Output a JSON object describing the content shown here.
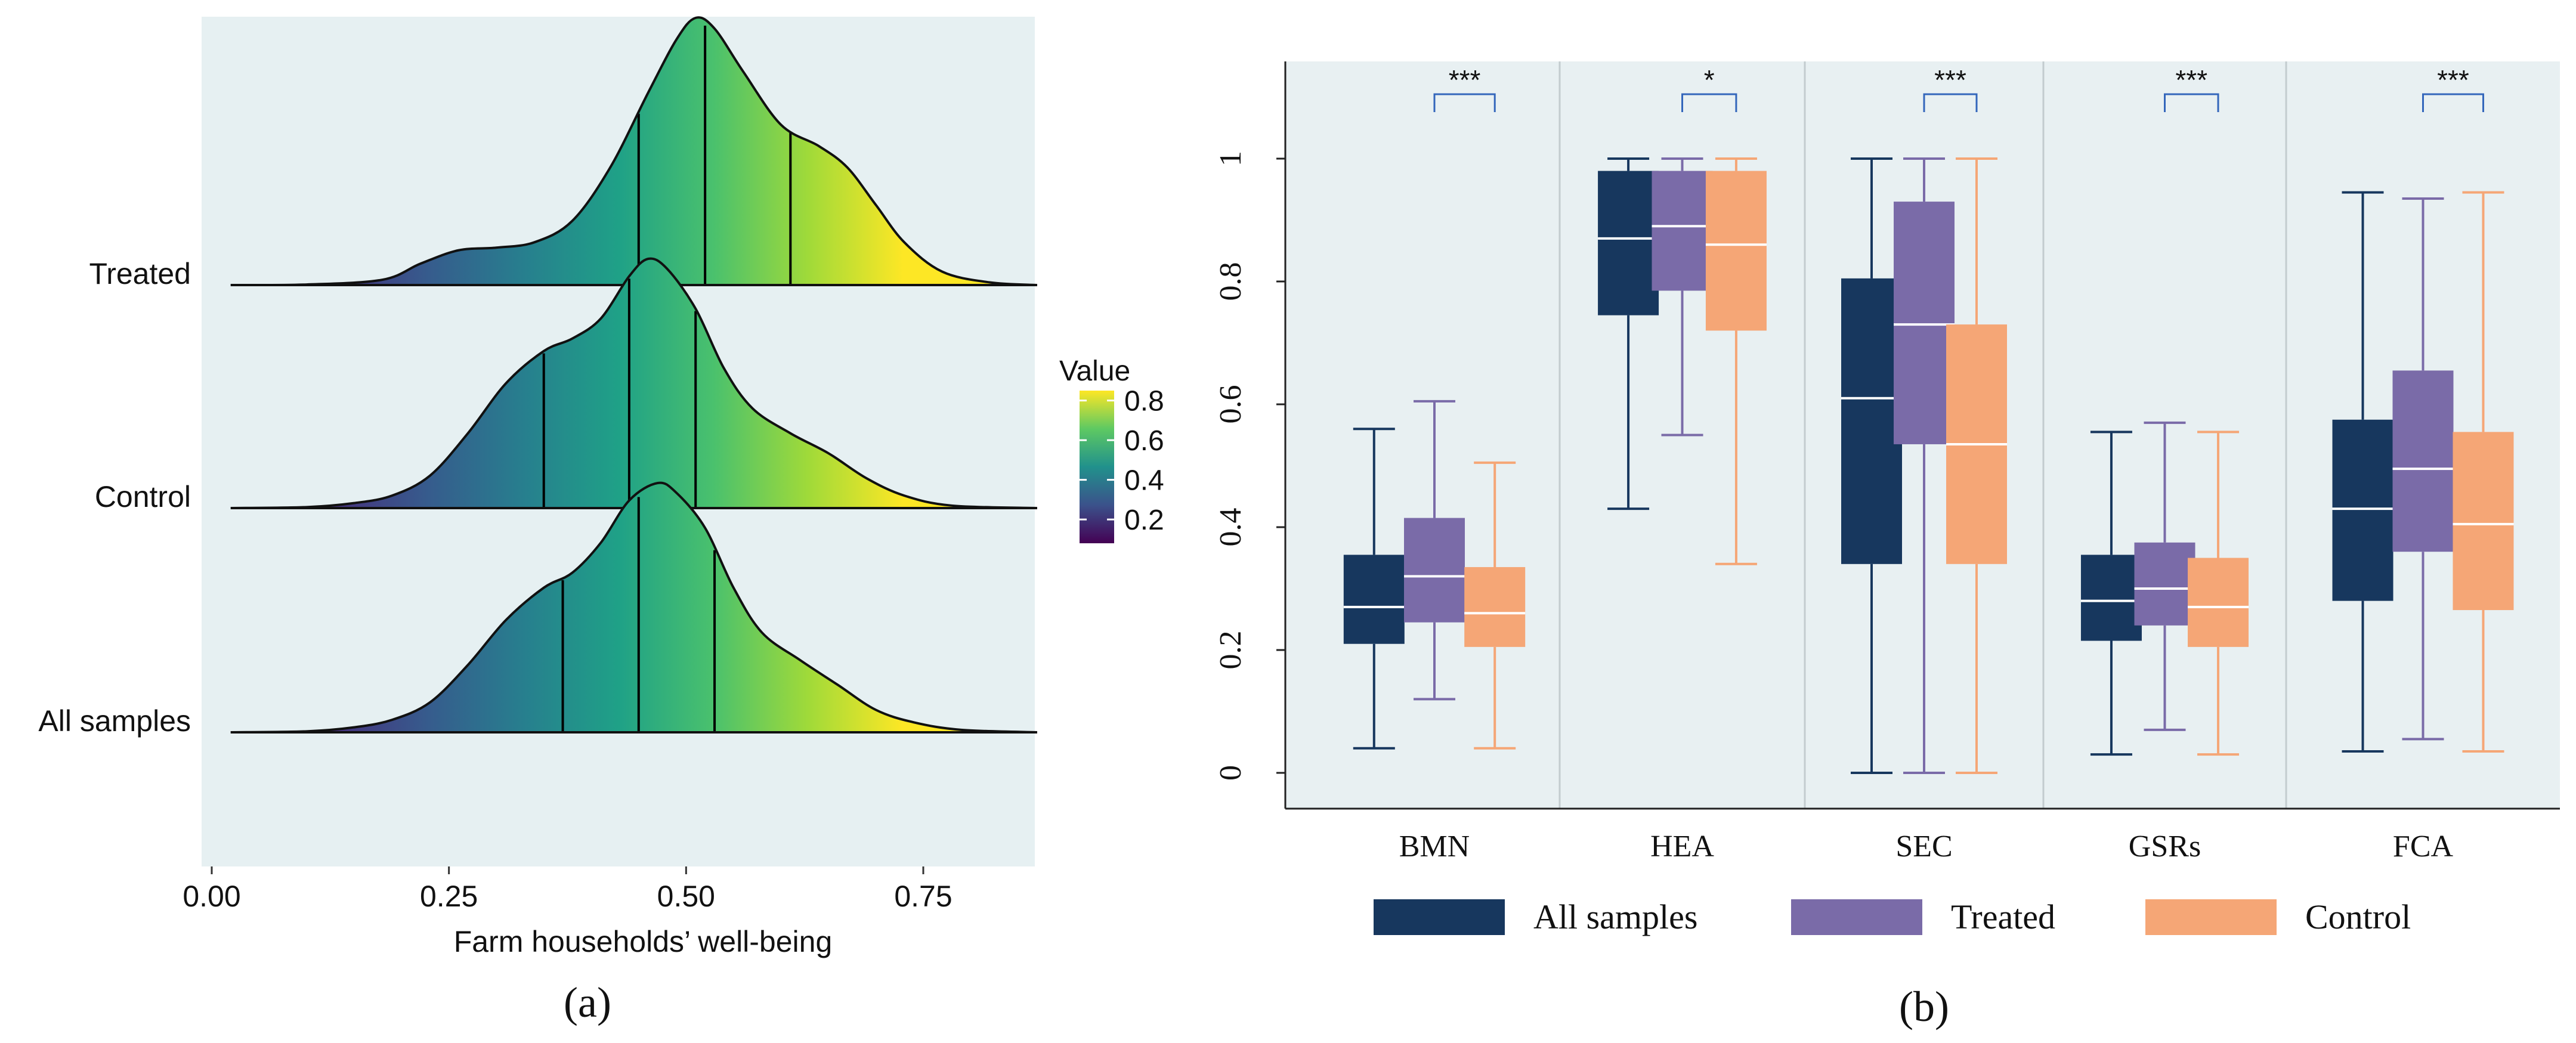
{
  "chart_data": [
    {
      "type": "ridgeline",
      "panel_label": "(a)",
      "xlabel": "Farm households’ well-being",
      "x_ticks": [
        "0.00",
        "0.25",
        "0.50",
        "0.75"
      ],
      "xlim": [
        0.0,
        0.87
      ],
      "categories": [
        "Treated",
        "Control",
        "All samples"
      ],
      "series": [
        {
          "name": "Treated",
          "quartiles": [
            0.45,
            0.52,
            0.61
          ],
          "density": [
            [
              0.02,
              0
            ],
            [
              0.1,
              0.002
            ],
            [
              0.18,
              0.02
            ],
            [
              0.22,
              0.08
            ],
            [
              0.26,
              0.13
            ],
            [
              0.3,
              0.14
            ],
            [
              0.34,
              0.16
            ],
            [
              0.38,
              0.24
            ],
            [
              0.42,
              0.44
            ],
            [
              0.46,
              0.72
            ],
            [
              0.49,
              0.92
            ],
            [
              0.51,
              1.0
            ],
            [
              0.53,
              0.96
            ],
            [
              0.56,
              0.8
            ],
            [
              0.6,
              0.6
            ],
            [
              0.64,
              0.52
            ],
            [
              0.67,
              0.44
            ],
            [
              0.7,
              0.3
            ],
            [
              0.73,
              0.16
            ],
            [
              0.77,
              0.05
            ],
            [
              0.82,
              0.01
            ],
            [
              0.87,
              0
            ]
          ]
        },
        {
          "name": "Control",
          "quartiles": [
            0.35,
            0.44,
            0.51
          ],
          "density": [
            [
              0.02,
              0
            ],
            [
              0.1,
              0.004
            ],
            [
              0.15,
              0.02
            ],
            [
              0.19,
              0.05
            ],
            [
              0.23,
              0.13
            ],
            [
              0.27,
              0.3
            ],
            [
              0.31,
              0.5
            ],
            [
              0.35,
              0.63
            ],
            [
              0.38,
              0.68
            ],
            [
              0.41,
              0.76
            ],
            [
              0.44,
              0.93
            ],
            [
              0.46,
              1.0
            ],
            [
              0.48,
              0.96
            ],
            [
              0.51,
              0.8
            ],
            [
              0.54,
              0.56
            ],
            [
              0.57,
              0.4
            ],
            [
              0.61,
              0.3
            ],
            [
              0.65,
              0.22
            ],
            [
              0.69,
              0.12
            ],
            [
              0.73,
              0.05
            ],
            [
              0.78,
              0.01
            ],
            [
              0.87,
              0
            ]
          ]
        },
        {
          "name": "All samples",
          "quartiles": [
            0.37,
            0.45,
            0.53
          ],
          "density": [
            [
              0.02,
              0
            ],
            [
              0.1,
              0.004
            ],
            [
              0.15,
              0.02
            ],
            [
              0.19,
              0.05
            ],
            [
              0.23,
              0.12
            ],
            [
              0.27,
              0.27
            ],
            [
              0.31,
              0.45
            ],
            [
              0.35,
              0.58
            ],
            [
              0.38,
              0.64
            ],
            [
              0.41,
              0.76
            ],
            [
              0.44,
              0.93
            ],
            [
              0.47,
              1.0
            ],
            [
              0.49,
              0.96
            ],
            [
              0.52,
              0.82
            ],
            [
              0.55,
              0.58
            ],
            [
              0.58,
              0.4
            ],
            [
              0.62,
              0.29
            ],
            [
              0.66,
              0.19
            ],
            [
              0.7,
              0.09
            ],
            [
              0.74,
              0.04
            ],
            [
              0.79,
              0.01
            ],
            [
              0.87,
              0
            ]
          ]
        }
      ],
      "colorbar": {
        "title": "Value",
        "ticks": [
          "0.8",
          "0.6",
          "0.4",
          "0.2"
        ],
        "range": [
          0.08,
          0.85
        ]
      }
    },
    {
      "type": "boxplot",
      "panel_label": "(b)",
      "categories": [
        "BMN",
        "HEA",
        "SEC",
        "GSRs",
        "FCA"
      ],
      "ylim": [
        -0.03,
        1.16
      ],
      "y_ticks": [
        "0",
        "0.2",
        "0.4",
        "0.6",
        "0.8",
        "1"
      ],
      "significance": [
        "***",
        "*",
        "***",
        "***",
        "***"
      ],
      "legend": [
        "All samples",
        "Treated",
        "Control"
      ],
      "colors": {
        "All samples": "#17375e",
        "Treated": "#7a6ba8",
        "Control": "#f5a676",
        "panel_bg": "#e8f0f2",
        "ridge_bg": "#e6f0f2",
        "bracket": "#3366bb"
      },
      "series": [
        {
          "name": "All samples",
          "boxes": [
            {
              "min": 0.04,
              "q1": 0.21,
              "median": 0.27,
              "q3": 0.355,
              "max": 0.56
            },
            {
              "min": 0.43,
              "q1": 0.745,
              "median": 0.87,
              "q3": 0.98,
              "max": 1.0
            },
            {
              "min": 0.0,
              "q1": 0.34,
              "median": 0.61,
              "q3": 0.805,
              "max": 1.0
            },
            {
              "min": 0.03,
              "q1": 0.215,
              "median": 0.28,
              "q3": 0.355,
              "max": 0.555
            },
            {
              "min": 0.035,
              "q1": 0.28,
              "median": 0.43,
              "q3": 0.575,
              "max": 0.945
            }
          ]
        },
        {
          "name": "Treated",
          "boxes": [
            {
              "min": 0.12,
              "q1": 0.245,
              "median": 0.32,
              "q3": 0.415,
              "max": 0.605
            },
            {
              "min": 0.55,
              "q1": 0.785,
              "median": 0.89,
              "q3": 0.98,
              "max": 1.0
            },
            {
              "min": 0.0,
              "q1": 0.535,
              "median": 0.73,
              "q3": 0.93,
              "max": 1.0
            },
            {
              "min": 0.07,
              "q1": 0.24,
              "median": 0.3,
              "q3": 0.375,
              "max": 0.57
            },
            {
              "min": 0.055,
              "q1": 0.36,
              "median": 0.495,
              "q3": 0.655,
              "max": 0.935
            }
          ]
        },
        {
          "name": "Control",
          "boxes": [
            {
              "min": 0.04,
              "q1": 0.205,
              "median": 0.26,
              "q3": 0.335,
              "max": 0.505
            },
            {
              "min": 0.34,
              "q1": 0.72,
              "median": 0.86,
              "q3": 0.98,
              "max": 1.0
            },
            {
              "min": 0.0,
              "q1": 0.34,
              "median": 0.535,
              "q3": 0.73,
              "max": 1.0
            },
            {
              "min": 0.03,
              "q1": 0.205,
              "median": 0.27,
              "q3": 0.35,
              "max": 0.555
            },
            {
              "min": 0.035,
              "q1": 0.265,
              "median": 0.405,
              "q3": 0.555,
              "max": 0.945
            }
          ]
        }
      ]
    }
  ]
}
